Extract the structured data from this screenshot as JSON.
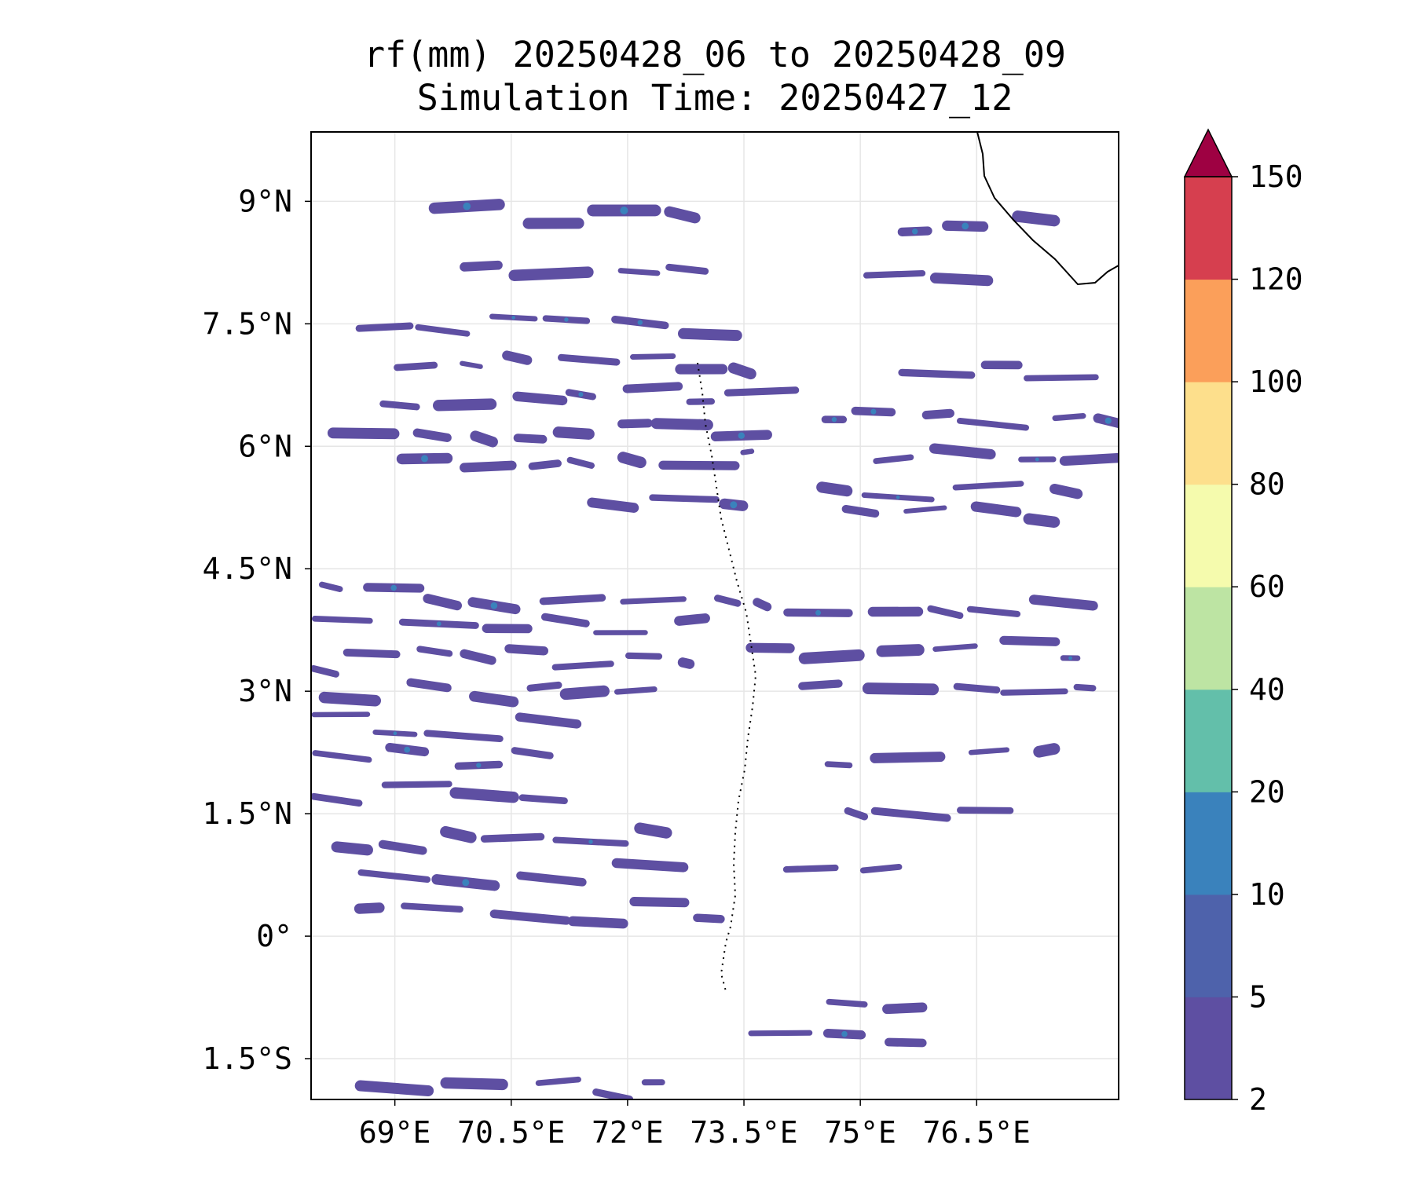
{
  "title": {
    "line1": "rf(mm) 20250428_06 to 20250428_09",
    "line2": "Simulation Time: 20250427_12"
  },
  "map": {
    "lon_range": [
      67.92,
      78.33
    ],
    "lat_range": [
      -2.0,
      9.85
    ],
    "lon_ticks": [
      {
        "value": 69.0,
        "label": "69°E"
      },
      {
        "value": 70.5,
        "label": "70.5°E"
      },
      {
        "value": 72.0,
        "label": "72°E"
      },
      {
        "value": 73.5,
        "label": "73.5°E"
      },
      {
        "value": 75.0,
        "label": "75°E"
      },
      {
        "value": 76.5,
        "label": "76.5°E"
      }
    ],
    "lat_ticks": [
      {
        "value": 9.0,
        "label": "9°N"
      },
      {
        "value": 7.5,
        "label": "7.5°N"
      },
      {
        "value": 6.0,
        "label": "6°N"
      },
      {
        "value": 4.5,
        "label": "4.5°N"
      },
      {
        "value": 3.0,
        "label": "3°N"
      },
      {
        "value": 1.5,
        "label": "1.5°N"
      },
      {
        "value": 0.0,
        "label": "0°"
      },
      {
        "value": -1.5,
        "label": "1.5°S"
      }
    ],
    "gridlines": true,
    "coastline": "southern tip of India (top-right corner)",
    "rain_color": "#5e4fa2",
    "rain_bands": [
      {
        "lat": 8.8,
        "lon": [
          69.5,
          73.3
        ]
      },
      {
        "lat": 8.2,
        "lon": [
          69.8,
          73.0
        ]
      },
      {
        "lat": 7.5,
        "lon": [
          68.5,
          73.8
        ]
      },
      {
        "lat": 7.0,
        "lon": [
          69.0,
          74.0
        ]
      },
      {
        "lat": 6.6,
        "lon": [
          68.8,
          74.5
        ]
      },
      {
        "lat": 6.2,
        "lon": [
          68.2,
          73.8
        ]
      },
      {
        "lat": 5.8,
        "lon": [
          69.0,
          73.6
        ]
      },
      {
        "lat": 5.3,
        "lon": [
          71.5,
          73.5
        ]
      },
      {
        "lat": 4.2,
        "lon": [
          68.0,
          73.8
        ]
      },
      {
        "lat": 3.8,
        "lon": [
          67.92,
          73.0
        ]
      },
      {
        "lat": 3.4,
        "lon": [
          67.92,
          72.8
        ]
      },
      {
        "lat": 3.0,
        "lon": [
          68.0,
          72.5
        ]
      },
      {
        "lat": 2.6,
        "lon": [
          67.92,
          71.5
        ]
      },
      {
        "lat": 2.2,
        "lon": [
          67.92,
          71.0
        ]
      },
      {
        "lat": 1.8,
        "lon": [
          67.92,
          71.2
        ]
      },
      {
        "lat": 1.2,
        "lon": [
          68.2,
          72.5
        ]
      },
      {
        "lat": 0.8,
        "lon": [
          68.5,
          73.0
        ]
      },
      {
        "lat": 0.3,
        "lon": [
          68.5,
          73.2
        ]
      },
      {
        "lat": 6.9,
        "lon": [
          75.5,
          78.33
        ]
      },
      {
        "lat": 6.4,
        "lon": [
          74.5,
          78.33
        ]
      },
      {
        "lat": 5.9,
        "lon": [
          75.2,
          78.33
        ]
      },
      {
        "lat": 5.5,
        "lon": [
          74.5,
          77.8
        ]
      },
      {
        "lat": 5.2,
        "lon": [
          74.8,
          77.5
        ]
      },
      {
        "lat": 4.0,
        "lon": [
          74.0,
          78.2
        ]
      },
      {
        "lat": 3.5,
        "lon": [
          73.5,
          77.8
        ]
      },
      {
        "lat": 3.0,
        "lon": [
          74.2,
          78.0
        ]
      },
      {
        "lat": 2.2,
        "lon": [
          74.5,
          77.5
        ]
      },
      {
        "lat": 1.6,
        "lon": [
          74.8,
          77.2
        ]
      },
      {
        "lat": 8.7,
        "lon": [
          75.5,
          77.5
        ]
      },
      {
        "lat": 8.1,
        "lon": [
          75.0,
          77.0
        ]
      },
      {
        "lat": 0.8,
        "lon": [
          74.0,
          75.5
        ]
      },
      {
        "lat": -0.8,
        "lon": [
          74.5,
          76.0
        ]
      },
      {
        "lat": -1.3,
        "lon": [
          73.5,
          75.8
        ]
      },
      {
        "lat": -1.8,
        "lon": [
          68.5,
          72.5
        ]
      }
    ]
  },
  "colorbar": {
    "levels": [
      2,
      5,
      10,
      20,
      40,
      60,
      80,
      100,
      120,
      150
    ],
    "tick_labels": [
      "2",
      "5",
      "10",
      "20",
      "40",
      "60",
      "80",
      "100",
      "120",
      "150"
    ],
    "colors": [
      "#5e4fa2",
      "#4e62ab",
      "#3a82bc",
      "#63bfaa",
      "#bde4a3",
      "#f5fbad",
      "#fddf8c",
      "#fb9f5a",
      "#d63f4f"
    ],
    "extend_color": "#9e0142",
    "extend": "max"
  }
}
